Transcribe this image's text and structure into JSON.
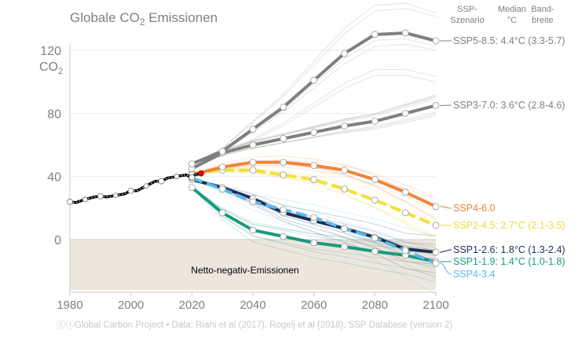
{
  "chart_data": {
    "type": "line",
    "title": "Globale CO",
    "title_sub": "2",
    "title_rest": " Emissionen",
    "ylabel": "CO",
    "ylabel_sub": "2",
    "xlim": [
      1980,
      2100
    ],
    "ylim": [
      -32,
      135
    ],
    "yticks": [
      0,
      40,
      80,
      120
    ],
    "xticks": [
      1980,
      2000,
      2020,
      2040,
      2060,
      2080,
      2100
    ],
    "grid": true,
    "negative_region_label": "Netto-negativ-Emissionen",
    "legend_header": {
      "scenario": [
        "SSP-",
        "Szenario"
      ],
      "median": [
        "Median",
        "°C"
      ],
      "range": [
        "Band-",
        "breite"
      ]
    },
    "historical": {
      "color": "#000000",
      "x": [
        1980,
        1982,
        1985,
        1988,
        1990,
        1992,
        1995,
        1998,
        2000,
        2002,
        2005,
        2008,
        2010,
        2012,
        2015,
        2018,
        2020,
        2021,
        2023
      ],
      "y": [
        24,
        23.5,
        25.5,
        27,
        27.5,
        27,
        28,
        29,
        31,
        31,
        34,
        37,
        37,
        39,
        40,
        41,
        39.5,
        41,
        42
      ],
      "marker_x": [
        1980,
        1990,
        2000,
        2010,
        2020
      ],
      "latest_x": 2023,
      "latest_color": "#ff0000"
    },
    "x": [
      2020,
      2030,
      2040,
      2050,
      2060,
      2070,
      2080,
      2090,
      2100
    ],
    "series": [
      {
        "name": "SSP5-8.5: 4.4°C (3.3-5.7)",
        "color": "#7f7f7f",
        "label_color": "#808080",
        "values": [
          48,
          56,
          70,
          84,
          101,
          118,
          130,
          131,
          126
        ]
      },
      {
        "name": "SSP3-7.0: 3.6°C (2.8-4.6)",
        "color": "#7f7f7f",
        "label_color": "#808080",
        "values": [
          45,
          55,
          60,
          64,
          68,
          72,
          75,
          80,
          85
        ]
      },
      {
        "name": "SSP4-6.0",
        "color": "#f0843a",
        "label_color": "#f0843a",
        "values": [
          41,
          46,
          49,
          49,
          47,
          44,
          38,
          30,
          21
        ]
      },
      {
        "name": "SSP2-4.5: 2.7°C (2.1-3.5)",
        "color": "#f2e03c",
        "label_color": "#f0d83a",
        "values": [
          42,
          44,
          44,
          41,
          38,
          32,
          25,
          17,
          9
        ]
      },
      {
        "name": "SSP4-3.4",
        "color": "#5bb8ea",
        "label_color": "#5bb8ea",
        "values": [
          39,
          32,
          24,
          19,
          14,
          7,
          1,
          -7,
          -15
        ]
      },
      {
        "name": "SSP1-2.6: 1.8°C (1.3-2.4)",
        "color": "#1e2e54",
        "label_color": "#1e2e54",
        "values": [
          38,
          33,
          26,
          17,
          12,
          7,
          1.5,
          -6,
          -8
        ]
      },
      {
        "name": "SSP1-1.9: 1.4°C (1.0-1.8)",
        "color": "#1a9a80",
        "label_color": "#1a9a80",
        "values": [
          33,
          17,
          6,
          2,
          -2,
          -4.5,
          -7.5,
          -10,
          -14
        ]
      }
    ],
    "footer": "Global Carbon Project  •  Data: Riahi et al (2017), Rogelj et al (2018), SSP Database (version 2)"
  }
}
